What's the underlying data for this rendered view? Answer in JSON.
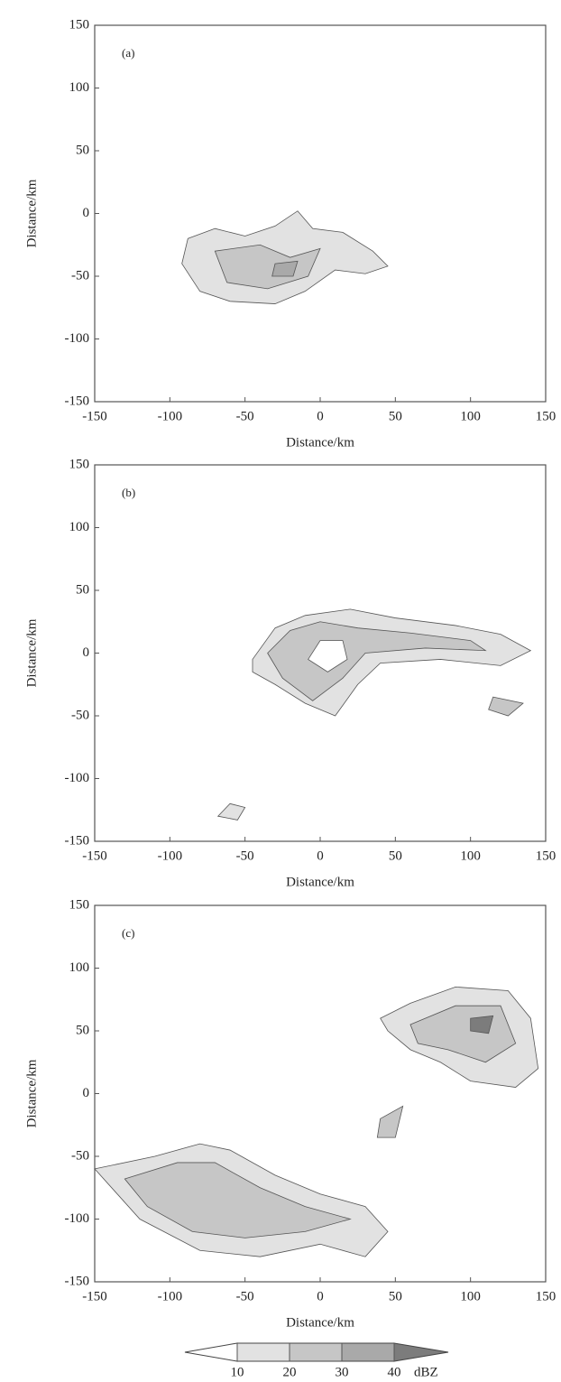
{
  "chart_data": [
    {
      "type": "contour",
      "panel_label": "(a)",
      "xlabel": "Distance/km",
      "ylabel": "Distance/km",
      "xlim": [
        -150,
        150
      ],
      "ylim": [
        -150,
        150
      ],
      "xticks": [
        -150,
        -100,
        -50,
        0,
        50,
        100,
        150
      ],
      "yticks": [
        -150,
        -100,
        -50,
        0,
        50,
        100,
        150
      ]
    },
    {
      "type": "contour",
      "panel_label": "(b)",
      "xlabel": "Distance/km",
      "ylabel": "Distance/km",
      "xlim": [
        -150,
        150
      ],
      "ylim": [
        -150,
        150
      ],
      "xticks": [
        -150,
        -100,
        -50,
        0,
        50,
        100,
        150
      ],
      "yticks": [
        -150,
        -100,
        -50,
        0,
        50,
        100,
        150
      ]
    },
    {
      "type": "contour",
      "panel_label": "(c)",
      "xlabel": "Distance/km",
      "ylabel": "Distance/km",
      "xlim": [
        -150,
        150
      ],
      "ylim": [
        -150,
        150
      ],
      "xticks": [
        -150,
        -100,
        -50,
        0,
        50,
        100,
        150
      ],
      "yticks": [
        -150,
        -100,
        -50,
        0,
        50,
        100,
        150
      ]
    }
  ],
  "colorbar": {
    "ticks": [
      10,
      20,
      30,
      40
    ],
    "unit": "dBZ",
    "colors": [
      "#ffffff",
      "#e2e2e2",
      "#c6c6c6",
      "#a9a9a9",
      "#7c7c7c"
    ]
  }
}
